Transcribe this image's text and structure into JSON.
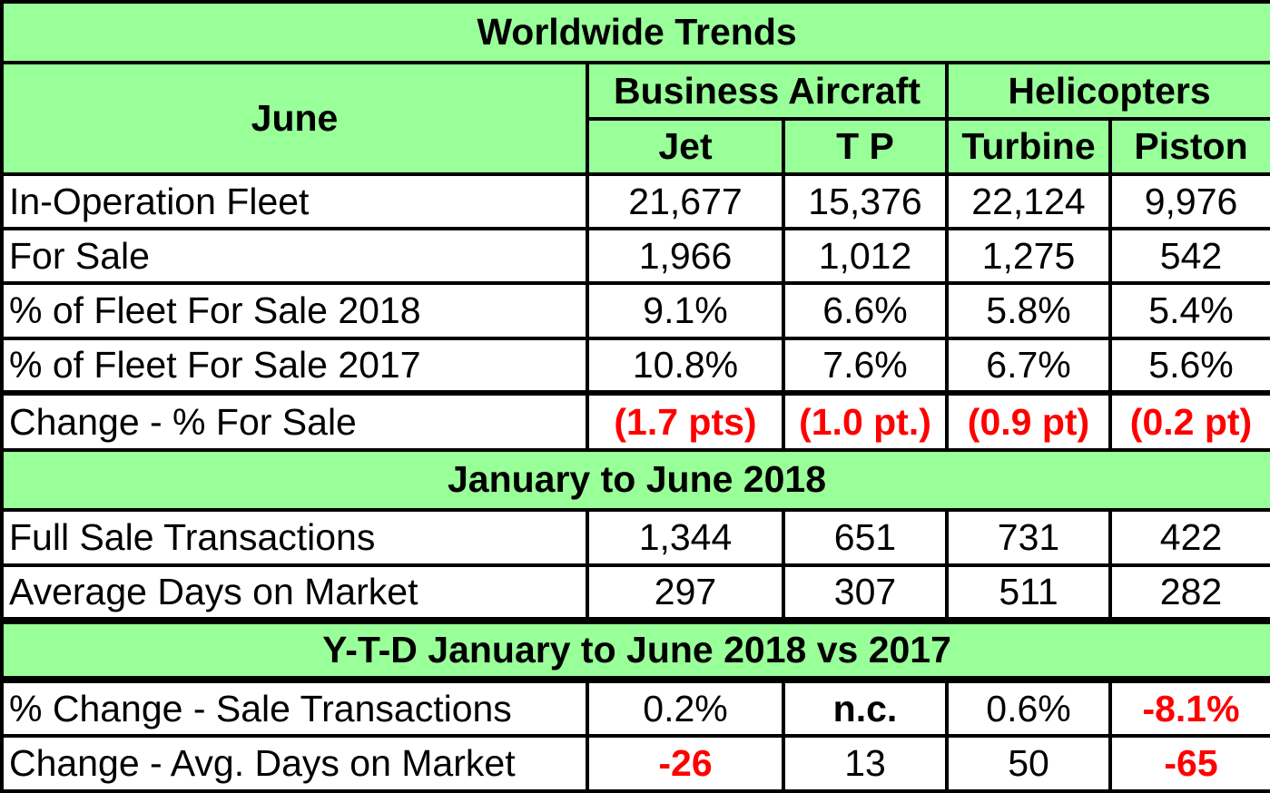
{
  "chart_data": {
    "type": "table",
    "title": "Worldwide Trends",
    "header": {
      "row_label": "June",
      "groups": [
        "Business Aircraft",
        "Helicopters"
      ],
      "columns": [
        "Jet",
        "T P",
        "Turbine",
        "Piston"
      ]
    },
    "sections": [
      {
        "title": "",
        "rows": [
          {
            "label": "In-Operation Fleet",
            "values": [
              "21,677",
              "15,376",
              "22,124",
              "9,976"
            ]
          },
          {
            "label": "For Sale",
            "values": [
              "1,966",
              "1,012",
              "1,275",
              "542"
            ]
          },
          {
            "label": "% of Fleet For Sale 2018",
            "values": [
              "9.1%",
              "6.6%",
              "5.8%",
              "5.4%"
            ]
          },
          {
            "label": "% of Fleet For Sale 2017",
            "values": [
              "10.8%",
              "7.6%",
              "6.7%",
              "5.6%"
            ]
          },
          {
            "label": "Change - % For Sale",
            "values": [
              "(1.7 pts)",
              "(1.0 pt.)",
              "(0.9 pt)",
              "(0.2 pt)"
            ]
          }
        ]
      },
      {
        "title": "January to June 2018",
        "rows": [
          {
            "label": "Full Sale Transactions",
            "values": [
              "1,344",
              "651",
              "731",
              "422"
            ]
          },
          {
            "label": "Average Days on Market",
            "values": [
              "297",
              "307",
              "511",
              "282"
            ]
          }
        ]
      },
      {
        "title": "Y-T-D January to June 2018 vs 2017",
        "rows": [
          {
            "label": "% Change  - Sale Transactions",
            "values": [
              "0.2%",
              "n.c.",
              "0.6%",
              "-8.1%"
            ]
          },
          {
            "label": "Change -  Avg. Days on Market",
            "values": [
              "-26",
              "13",
              "50",
              "-65"
            ]
          }
        ]
      }
    ],
    "colors": {
      "header_fill": "#99ff99",
      "negative_text": "#ff0000",
      "border": "#000000"
    }
  }
}
